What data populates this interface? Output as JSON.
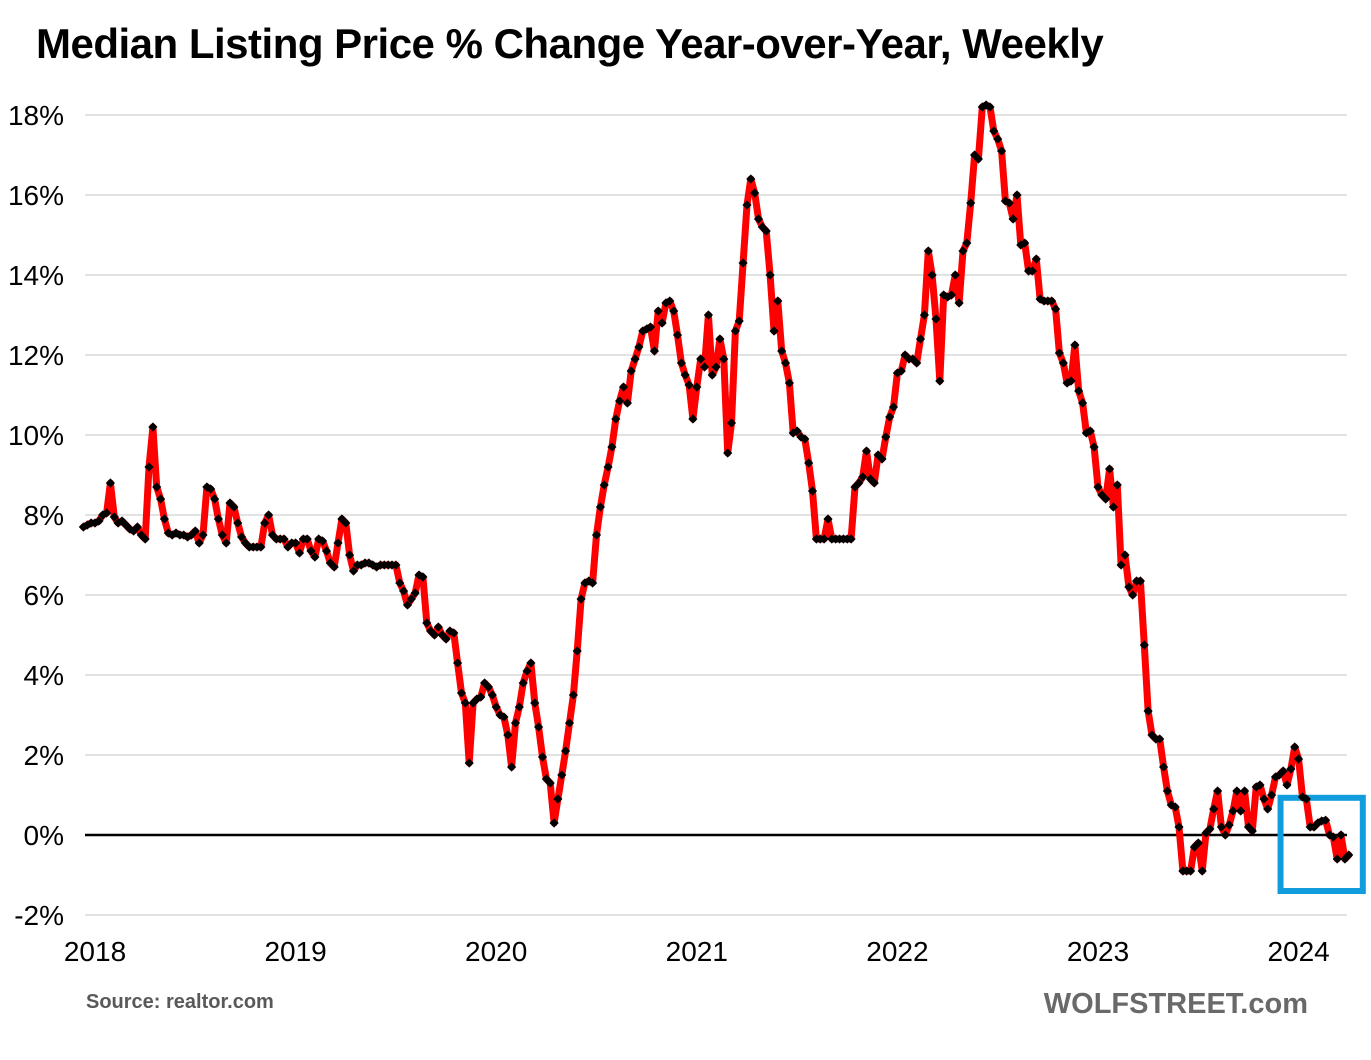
{
  "title": "Median Listing Price % Change Year-over-Year, Weekly",
  "source_note": "Source: realtor.com",
  "watermark": "WOLFSTREET.com",
  "colors": {
    "line": "#FF0000",
    "marker": "#000000",
    "grid": "#D9D9D9",
    "zero_axis": "#000000",
    "highlight": "#119CDD",
    "text": "#000000",
    "muted_text": "#595959"
  },
  "chart_data": {
    "type": "line",
    "title": "Median Listing Price % Change Year-over-Year, Weekly",
    "xlabel": "",
    "ylabel": "Median listing price % change year-over-year",
    "x_unit": "weeks",
    "x_start_year": 2018,
    "points_per_year": 52,
    "start_offset_weeks": -3,
    "ylim": [
      -2.5,
      18.6
    ],
    "grid": "horizontal-only",
    "legend_position": "none",
    "x_ticks": [
      {
        "year": 2018,
        "label": "2018"
      },
      {
        "year": 2019,
        "label": "2019"
      },
      {
        "year": 2020,
        "label": "2020"
      },
      {
        "year": 2021,
        "label": "2021"
      },
      {
        "year": 2022,
        "label": "2022"
      },
      {
        "year": 2023,
        "label": "2023"
      },
      {
        "year": 2024,
        "label": "2024"
      }
    ],
    "y_ticks": [
      {
        "value": 18,
        "label": "18%"
      },
      {
        "value": 16,
        "label": "16%"
      },
      {
        "value": 14,
        "label": "14%"
      },
      {
        "value": 12,
        "label": "12%"
      },
      {
        "value": 10,
        "label": "10%"
      },
      {
        "value": 8,
        "label": "8%"
      },
      {
        "value": 6,
        "label": "6%"
      },
      {
        "value": 4,
        "label": "4%"
      },
      {
        "value": 2,
        "label": "2%"
      },
      {
        "value": 0,
        "label": "0%"
      },
      {
        "value": -2,
        "label": "-2%"
      }
    ],
    "highlight_box": {
      "from_year": 2023.91,
      "to_year": 2024.32,
      "from_pct": -1.4,
      "to_pct": 0.93
    },
    "values": [
      7.7,
      7.75,
      7.8,
      7.8,
      7.85,
      8.0,
      8.05,
      8.8,
      7.95,
      7.8,
      7.85,
      7.75,
      7.65,
      7.6,
      7.7,
      7.5,
      7.4,
      9.2,
      10.2,
      8.7,
      8.4,
      7.9,
      7.55,
      7.5,
      7.55,
      7.5,
      7.5,
      7.45,
      7.5,
      7.6,
      7.3,
      7.5,
      8.7,
      8.65,
      8.4,
      7.9,
      7.5,
      7.3,
      8.3,
      8.2,
      7.8,
      7.45,
      7.3,
      7.2,
      7.2,
      7.2,
      7.2,
      7.8,
      8.0,
      7.5,
      7.4,
      7.4,
      7.4,
      7.2,
      7.3,
      7.3,
      7.05,
      7.4,
      7.4,
      7.1,
      6.95,
      7.4,
      7.35,
      7.1,
      6.8,
      6.7,
      7.3,
      7.9,
      7.8,
      7.0,
      6.6,
      6.75,
      6.75,
      6.8,
      6.8,
      6.75,
      6.7,
      6.75,
      6.75,
      6.75,
      6.75,
      6.75,
      6.3,
      6.1,
      5.75,
      5.9,
      6.05,
      6.5,
      6.45,
      5.3,
      5.1,
      5.0,
      5.2,
      5.0,
      4.9,
      5.1,
      5.05,
      4.3,
      3.55,
      3.3,
      1.8,
      3.3,
      3.4,
      3.45,
      3.8,
      3.7,
      3.5,
      3.2,
      3.0,
      2.95,
      2.5,
      1.7,
      2.8,
      3.2,
      3.8,
      4.1,
      4.3,
      3.3,
      2.7,
      1.95,
      1.4,
      1.3,
      0.3,
      0.9,
      1.5,
      2.1,
      2.8,
      3.5,
      4.6,
      5.9,
      6.3,
      6.35,
      6.3,
      7.5,
      8.2,
      8.75,
      9.2,
      9.7,
      10.4,
      10.85,
      11.2,
      10.8,
      11.6,
      11.9,
      12.2,
      12.6,
      12.65,
      12.7,
      12.1,
      13.1,
      12.8,
      13.3,
      13.35,
      13.1,
      12.5,
      11.8,
      11.5,
      11.25,
      10.4,
      11.2,
      11.9,
      11.7,
      13.0,
      11.5,
      11.7,
      12.4,
      11.9,
      9.55,
      10.3,
      12.6,
      12.85,
      14.3,
      15.75,
      16.4,
      16.05,
      15.4,
      15.2,
      15.1,
      14.0,
      12.6,
      13.35,
      12.1,
      11.8,
      11.3,
      10.05,
      10.1,
      9.95,
      9.9,
      9.3,
      8.6,
      7.4,
      7.4,
      7.4,
      7.9,
      7.4,
      7.4,
      7.4,
      7.4,
      7.4,
      7.4,
      8.7,
      8.8,
      8.95,
      9.6,
      8.9,
      8.8,
      9.5,
      9.4,
      9.95,
      10.45,
      10.7,
      11.55,
      11.6,
      12.0,
      11.9,
      11.9,
      11.8,
      12.4,
      13.0,
      14.6,
      14.0,
      12.9,
      11.35,
      13.5,
      13.45,
      13.5,
      14.0,
      13.3,
      14.6,
      14.8,
      15.8,
      17.0,
      16.9,
      18.2,
      18.25,
      18.2,
      17.6,
      17.4,
      17.1,
      15.85,
      15.8,
      15.4,
      16.0,
      14.75,
      14.8,
      14.1,
      14.1,
      14.4,
      13.4,
      13.35,
      13.35,
      13.35,
      13.15,
      12.05,
      11.8,
      11.3,
      11.35,
      12.25,
      11.1,
      10.8,
      10.05,
      10.1,
      9.7,
      8.7,
      8.5,
      8.4,
      9.15,
      8.2,
      8.75,
      6.75,
      7.0,
      6.2,
      6.0,
      6.35,
      6.35,
      4.75,
      3.1,
      2.5,
      2.4,
      2.4,
      1.7,
      1.1,
      0.75,
      0.7,
      0.2,
      -0.9,
      -0.9,
      -0.9,
      -0.3,
      -0.2,
      -0.9,
      0.05,
      0.15,
      0.65,
      1.1,
      0.2,
      0.0,
      0.25,
      0.6,
      1.1,
      0.6,
      1.1,
      0.2,
      0.1,
      1.2,
      1.25,
      0.9,
      0.65,
      1.0,
      1.45,
      1.5,
      1.6,
      1.25,
      1.65,
      2.2,
      1.9,
      0.95,
      0.9,
      0.2,
      0.2,
      0.3,
      0.35,
      0.37,
      0.0,
      -0.05,
      -0.6,
      0.0,
      -0.6,
      -0.5
    ]
  }
}
